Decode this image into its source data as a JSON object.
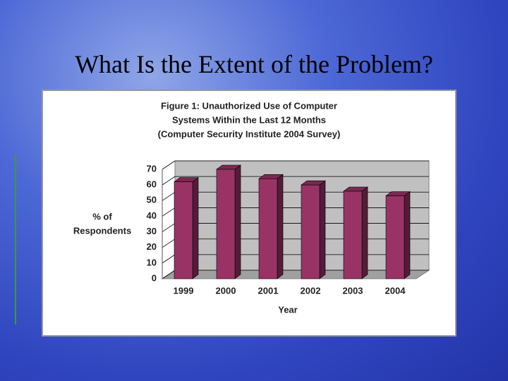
{
  "slide_title": "What Is the Extent of the Problem?",
  "chart_data": {
    "type": "bar",
    "title": [
      "Figure 1: Unauthorized Use of Computer",
      "Systems Within the Last 12 Months",
      "(Computer Security Institute 2004 Survey)"
    ],
    "ylabel": [
      "% of",
      "Respondents"
    ],
    "xlabel": "Year",
    "categories": [
      "1999",
      "2000",
      "2001",
      "2002",
      "2003",
      "2004"
    ],
    "values": [
      62,
      70,
      64,
      60,
      56,
      53
    ],
    "color": "#993366",
    "ylim": [
      0,
      70
    ],
    "yticks": [
      0,
      10,
      20,
      30,
      40,
      50,
      60,
      70
    ],
    "grid": true
  }
}
